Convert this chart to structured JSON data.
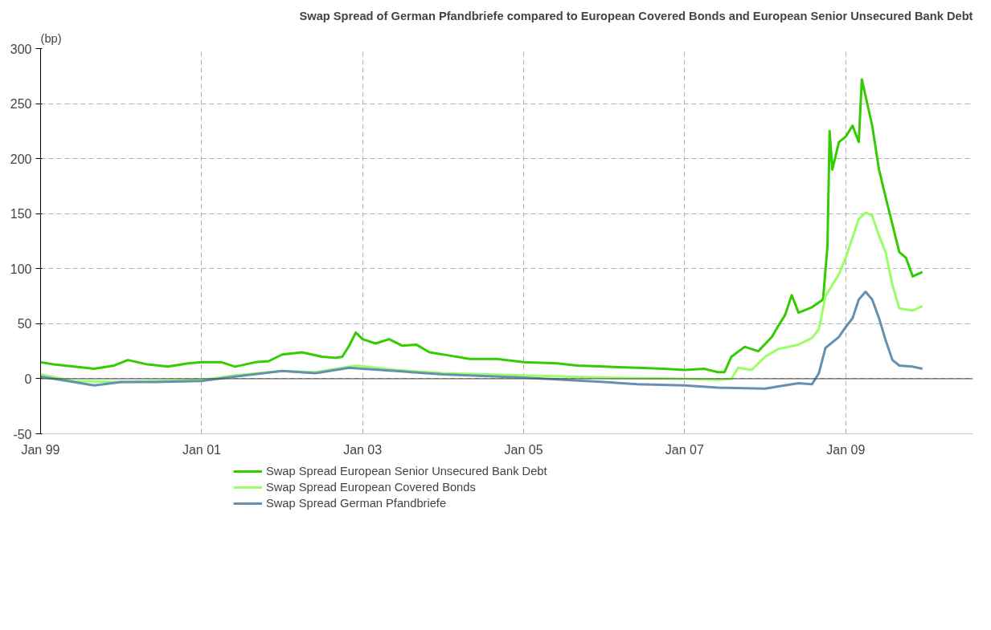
{
  "chart_data": {
    "type": "line",
    "title": "Swap Spread of German Pfandbriefe compared to European Covered Bonds and European Senior Unsecured Bank Debt",
    "ylabel": "(bp)",
    "ylim": [
      -50,
      300
    ],
    "yticks": [
      -50,
      0,
      50,
      100,
      150,
      200,
      250,
      300
    ],
    "xlim": [
      "1999-01-01",
      "2010-08-01"
    ],
    "xticks": [
      {
        "value": "1999-01-01",
        "label": "Jan 99"
      },
      {
        "value": "2001-01-01",
        "label": "Jan 01"
      },
      {
        "value": "2003-01-01",
        "label": "Jan 03"
      },
      {
        "value": "2005-01-01",
        "label": "Jan 05"
      },
      {
        "value": "2007-01-01",
        "label": "Jan 07"
      },
      {
        "value": "2009-01-01",
        "label": "Jan 09"
      }
    ],
    "grid": true,
    "legend": "bottom",
    "line_style": "solid",
    "marker": "none",
    "series": [
      {
        "name": "Swap Spread European Senior Unsecured Bank Debt",
        "color": "#33cc00",
        "x": [
          "1999-01",
          "1999-03",
          "1999-06",
          "1999-09",
          "1999-12",
          "2000-02",
          "2000-05",
          "2000-08",
          "2000-11",
          "2001-01",
          "2001-04",
          "2001-06",
          "2001-09",
          "2001-11",
          "2002-01",
          "2002-04",
          "2002-07",
          "2002-09",
          "2002-10",
          "2002-11",
          "2002-12",
          "2003-01",
          "2003-03",
          "2003-05",
          "2003-07",
          "2003-09",
          "2003-11",
          "2004-02",
          "2004-05",
          "2004-09",
          "2005-01",
          "2005-06",
          "2005-09",
          "2006-01",
          "2006-06",
          "2006-10",
          "2007-01",
          "2007-04",
          "2007-06",
          "2007-07",
          "2007-08",
          "2007-10",
          "2007-12",
          "2008-02",
          "2008-03",
          "2008-04",
          "2008-05",
          "2008-06",
          "2008-08",
          "2008-09-20",
          "2008-10-10",
          "2008-10-20",
          "2008-11",
          "2008-12",
          "2009-01",
          "2009-02",
          "2009-03-01",
          "2009-03-15",
          "2009-05",
          "2009-06",
          "2009-07",
          "2009-08",
          "2009-09",
          "2009-10",
          "2009-11",
          "2009-12-15"
        ],
        "values": [
          15,
          13,
          11,
          9,
          12,
          17,
          13,
          11,
          14,
          15,
          15,
          11,
          15,
          16,
          22,
          24,
          20,
          19,
          20,
          30,
          42,
          36,
          32,
          36,
          30,
          31,
          24,
          21,
          18,
          18,
          15,
          14,
          12,
          11,
          10,
          9,
          8,
          9,
          6,
          6,
          20,
          29,
          25,
          38,
          48,
          58,
          76,
          60,
          65,
          72,
          120,
          225,
          190,
          215,
          220,
          230,
          215,
          272,
          230,
          190,
          165,
          140,
          115,
          110,
          93,
          97
        ]
      },
      {
        "name": "Swap Spread European Covered Bonds",
        "color": "#99ff66",
        "x": [
          "1999-01",
          "1999-06",
          "2000-01",
          "2001-01",
          "2001-06",
          "2002-01",
          "2002-06",
          "2002-12",
          "2003-06",
          "2004-01",
          "2005-01",
          "2006-01",
          "2007-01",
          "2007-06",
          "2007-08",
          "2007-09",
          "2007-11",
          "2008-01",
          "2008-03",
          "2008-06",
          "2008-08",
          "2008-09",
          "2008-10",
          "2008-12",
          "2009-01",
          "2009-03",
          "2009-04",
          "2009-05",
          "2009-06",
          "2009-07",
          "2009-08",
          "2009-09",
          "2009-11",
          "2009-12-15"
        ],
        "values": [
          4,
          -2,
          -3,
          -1,
          3,
          7,
          6,
          12,
          8,
          5,
          3,
          1,
          0,
          -1,
          0,
          10,
          8,
          20,
          27,
          31,
          37,
          45,
          75,
          95,
          110,
          145,
          151,
          148,
          130,
          115,
          85,
          64,
          62,
          66
        ]
      },
      {
        "name": "Swap Spread German Pfandbriefe",
        "color": "#6690b0",
        "x": [
          "1999-01",
          "1999-06",
          "1999-09",
          "2000-01",
          "2000-06",
          "2001-01",
          "2001-06",
          "2002-01",
          "2002-06",
          "2002-11",
          "2003-01",
          "2003-06",
          "2004-01",
          "2005-01",
          "2006-01",
          "2006-06",
          "2007-01",
          "2007-06",
          "2008-01",
          "2008-03",
          "2008-06",
          "2008-08",
          "2008-09",
          "2008-10",
          "2008-12",
          "2009-01",
          "2009-02",
          "2009-03",
          "2009-04",
          "2009-05",
          "2009-06",
          "2009-07",
          "2009-08",
          "2009-09",
          "2009-11",
          "2009-12-15"
        ],
        "values": [
          2,
          -3,
          -6,
          -3,
          -3,
          -2,
          2,
          7,
          5,
          10,
          9,
          7,
          4,
          1,
          -3,
          -5,
          -6,
          -8,
          -9,
          -7,
          -4,
          -5,
          5,
          28,
          38,
          47,
          55,
          72,
          79,
          72,
          55,
          35,
          17,
          12,
          11,
          9
        ]
      }
    ]
  }
}
